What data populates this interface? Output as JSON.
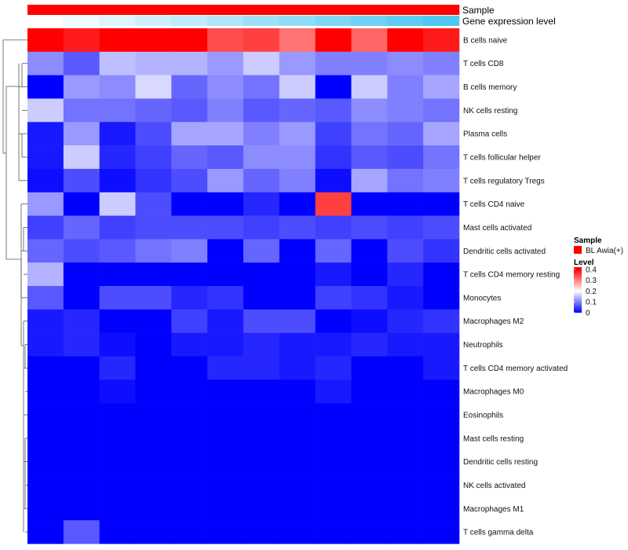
{
  "chart_data": {
    "type": "heatmap",
    "annotation_rows": [
      {
        "label": "Sample",
        "colors": [
          "#ff0000",
          "#ff0000",
          "#ff0000",
          "#ff0000",
          "#ff0000",
          "#ff0000",
          "#ff0000",
          "#ff0000",
          "#ff0000",
          "#ff0000",
          "#ff0000",
          "#ff0000"
        ]
      },
      {
        "label": "Gene expression level",
        "values": [
          0.0,
          0.09,
          0.18,
          0.27,
          0.36,
          0.45,
          0.55,
          0.64,
          0.73,
          0.82,
          0.91,
          1.0
        ],
        "low_color": "#ffffff",
        "high_color": "#4fc8f0"
      }
    ],
    "rows": [
      "B cells naive",
      "T cells CD8",
      "B cells memory",
      "NK cells resting",
      "Plasma cells",
      "T cells follicular helper",
      "T cells regulatory  Tregs",
      "T cells CD4 naive",
      "Mast cells activated",
      "Dendritic cells activated",
      "T cells CD4 memory resting",
      "Monocytes",
      "Macrophages M2",
      "Neutrophils",
      "T cells CD4 memory activated",
      "Macrophages M0",
      "Eosinophils",
      "Mast cells resting",
      "Dendritic cells resting",
      "NK cells activated",
      "Macrophages M1",
      "T cells gamma delta"
    ],
    "n_columns": 12,
    "values": [
      [
        0.44,
        0.38,
        0.44,
        0.4,
        0.42,
        0.34,
        0.35,
        0.31,
        0.41,
        0.32,
        0.44,
        0.38
      ],
      [
        0.11,
        0.07,
        0.15,
        0.14,
        0.14,
        0.12,
        0.16,
        0.12,
        0.1,
        0.1,
        0.11,
        0.1
      ],
      [
        0.0,
        0.12,
        0.11,
        0.17,
        0.08,
        0.11,
        0.09,
        0.16,
        0.0,
        0.16,
        0.1,
        0.13
      ],
      [
        0.16,
        0.09,
        0.09,
        0.08,
        0.07,
        0.1,
        0.07,
        0.08,
        0.07,
        0.11,
        0.1,
        0.09
      ],
      [
        0.02,
        0.12,
        0.02,
        0.06,
        0.13,
        0.13,
        0.1,
        0.12,
        0.05,
        0.09,
        0.08,
        0.13
      ],
      [
        0.02,
        0.16,
        0.03,
        0.05,
        0.08,
        0.07,
        0.11,
        0.11,
        0.04,
        0.07,
        0.06,
        0.09
      ],
      [
        0.01,
        0.06,
        0.01,
        0.04,
        0.06,
        0.12,
        0.08,
        0.1,
        0.01,
        0.13,
        0.09,
        0.1
      ],
      [
        0.12,
        0.0,
        0.16,
        0.06,
        0.0,
        0.0,
        0.03,
        0.0,
        0.35,
        0.0,
        0.0,
        0.0
      ],
      [
        0.05,
        0.08,
        0.05,
        0.06,
        0.06,
        0.06,
        0.05,
        0.06,
        0.05,
        0.06,
        0.05,
        0.06
      ],
      [
        0.08,
        0.06,
        0.07,
        0.09,
        0.1,
        0.0,
        0.08,
        0.0,
        0.08,
        0.0,
        0.06,
        0.04
      ],
      [
        0.14,
        0.0,
        0.0,
        0.0,
        0.0,
        0.0,
        0.0,
        0.0,
        0.02,
        0.0,
        0.03,
        0.0
      ],
      [
        0.07,
        0.0,
        0.06,
        0.06,
        0.03,
        0.04,
        0.0,
        0.0,
        0.05,
        0.04,
        0.02,
        0.0
      ],
      [
        0.02,
        0.03,
        0.0,
        0.0,
        0.05,
        0.02,
        0.06,
        0.06,
        0.0,
        0.01,
        0.03,
        0.04
      ],
      [
        0.02,
        0.03,
        0.01,
        0.0,
        0.02,
        0.02,
        0.03,
        0.02,
        0.02,
        0.03,
        0.02,
        0.02
      ],
      [
        0.0,
        0.0,
        0.03,
        0.0,
        0.0,
        0.03,
        0.03,
        0.02,
        0.03,
        0.0,
        0.0,
        0.02
      ],
      [
        0.0,
        0.0,
        0.01,
        0.0,
        0.0,
        0.0,
        0.0,
        0.0,
        0.02,
        0.0,
        0.0,
        0.0
      ],
      [
        0.0,
        0.0,
        0.0,
        0.0,
        0.0,
        0.0,
        0.0,
        0.0,
        0.0,
        0.0,
        0.0,
        0.0
      ],
      [
        0.0,
        0.0,
        0.0,
        0.0,
        0.0,
        0.0,
        0.0,
        0.0,
        0.0,
        0.0,
        0.0,
        0.0
      ],
      [
        0.0,
        0.0,
        0.0,
        0.0,
        0.0,
        0.0,
        0.0,
        0.0,
        0.0,
        0.0,
        0.0,
        0.0
      ],
      [
        0.0,
        0.0,
        0.0,
        0.0,
        0.0,
        0.0,
        0.0,
        0.0,
        0.0,
        0.0,
        0.0,
        0.0
      ],
      [
        0.0,
        0.0,
        0.0,
        0.0,
        0.0,
        0.0,
        0.0,
        0.0,
        0.0,
        0.0,
        0.0,
        0.0
      ],
      [
        0.0,
        0.07,
        0.0,
        0.0,
        0.0,
        0.0,
        0.0,
        0.0,
        0.0,
        0.0,
        0.0,
        0.0
      ]
    ],
    "color_scale": {
      "stops": [
        0,
        0.2,
        0.4
      ],
      "colors": [
        "#0000ff",
        "#ffffff",
        "#ff0000"
      ]
    },
    "legend": {
      "sample_title": "Sample",
      "sample_entry": "BL Awia(+)",
      "sample_color": "#ff0000",
      "level_title": "Level",
      "level_ticks": [
        "0.4",
        "0.3",
        "0.2",
        "0.1",
        "0"
      ],
      "level_tick_values": [
        0.4,
        0.3,
        0.2,
        0.1,
        0
      ],
      "placement": "right"
    },
    "dendrogram": {
      "side": "left",
      "row_order_groups": "hierarchical clustering of rows"
    }
  }
}
